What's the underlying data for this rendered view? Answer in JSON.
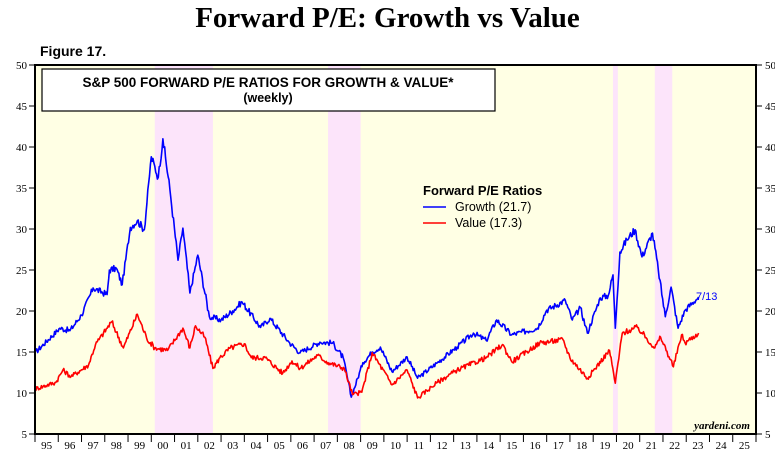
{
  "header": {
    "title": "Forward P/E: Growth vs Value",
    "figure_label": "Figure 17."
  },
  "chart_data": {
    "type": "line",
    "title": "S&P 500 FORWARD P/E RATIOS FOR GROWTH & VALUE*",
    "subtitle": "(weekly)",
    "legend_title": "Forward P/E Ratios",
    "legend_placement": "center",
    "xlim": [
      1995,
      2026
    ],
    "ylim": [
      5,
      50
    ],
    "y_ticks": [
      5,
      10,
      15,
      20,
      25,
      30,
      35,
      40,
      45,
      50
    ],
    "x_tick_labels": [
      "95",
      "96",
      "97",
      "98",
      "99",
      "00",
      "01",
      "02",
      "03",
      "04",
      "05",
      "06",
      "07",
      "08",
      "09",
      "10",
      "11",
      "12",
      "13",
      "14",
      "15",
      "16",
      "17",
      "18",
      "19",
      "20",
      "21",
      "22",
      "23",
      "24",
      "25"
    ],
    "grid": false,
    "background_color": "#ffffe4",
    "recession_shading_color": "#fce4fa",
    "shaded_periods": [
      [
        2000.15,
        2002.65
      ],
      [
        2007.6,
        2009.0
      ],
      [
        2019.85,
        2020.06
      ],
      [
        2021.65,
        2022.4
      ]
    ],
    "end_label": "7/13",
    "source": "yardeni.com",
    "series": [
      {
        "name": "Growth (21.7)",
        "color": "#0000ff",
        "points": [
          [
            1995.0,
            14.9
          ],
          [
            1996.07,
            17.9
          ],
          [
            1996.5,
            17.6
          ],
          [
            1997.0,
            19.5
          ],
          [
            1997.5,
            22.8
          ],
          [
            1998.1,
            22.0
          ],
          [
            1998.2,
            25.0
          ],
          [
            1998.5,
            25.2
          ],
          [
            1998.75,
            23.2
          ],
          [
            1999.1,
            30.2
          ],
          [
            1999.4,
            31.0
          ],
          [
            1999.7,
            29.9
          ],
          [
            2000.0,
            38.8
          ],
          [
            2000.3,
            36.3
          ],
          [
            2000.5,
            41.0
          ],
          [
            2000.8,
            34.8
          ],
          [
            2001.15,
            26.2
          ],
          [
            2001.36,
            30.1
          ],
          [
            2001.66,
            22.2
          ],
          [
            2002.0,
            26.8
          ],
          [
            2002.5,
            19.3
          ],
          [
            2003.0,
            18.9
          ],
          [
            2003.5,
            20.0
          ],
          [
            2003.9,
            21.1
          ],
          [
            2004.7,
            18.0
          ],
          [
            2005.1,
            19.1
          ],
          [
            2005.95,
            16.1
          ],
          [
            2006.4,
            14.9
          ],
          [
            2007.25,
            16.2
          ],
          [
            2007.8,
            16.1
          ],
          [
            2008.25,
            14.3
          ],
          [
            2008.6,
            9.5
          ],
          [
            2009.1,
            13.7
          ],
          [
            2009.5,
            15.0
          ],
          [
            2009.85,
            15.6
          ],
          [
            2010.35,
            12.6
          ],
          [
            2011.0,
            14.4
          ],
          [
            2011.45,
            11.8
          ],
          [
            2012.3,
            13.7
          ],
          [
            2013.15,
            15.6
          ],
          [
            2013.85,
            17.3
          ],
          [
            2014.4,
            16.4
          ],
          [
            2014.85,
            18.9
          ],
          [
            2015.5,
            17.1
          ],
          [
            2016.6,
            17.9
          ],
          [
            2017.0,
            20.1
          ],
          [
            2017.8,
            21.3
          ],
          [
            2018.1,
            18.9
          ],
          [
            2018.45,
            20.4
          ],
          [
            2018.75,
            17.3
          ],
          [
            2019.3,
            21.6
          ],
          [
            2019.65,
            21.9
          ],
          [
            2019.85,
            24.4
          ],
          [
            2019.95,
            17.9
          ],
          [
            2020.15,
            27.2
          ],
          [
            2020.45,
            28.7
          ],
          [
            2020.8,
            29.9
          ],
          [
            2021.1,
            26.6
          ],
          [
            2021.55,
            29.5
          ],
          [
            2021.8,
            25.0
          ],
          [
            2022.1,
            19.3
          ],
          [
            2022.35,
            22.9
          ],
          [
            2022.65,
            17.9
          ],
          [
            2022.95,
            20.1
          ],
          [
            2023.53,
            21.7
          ]
        ]
      },
      {
        "name": "Value (17.3)",
        "color": "#ff0000",
        "points": [
          [
            1995.0,
            10.5
          ],
          [
            1995.9,
            11.3
          ],
          [
            1996.2,
            12.8
          ],
          [
            1996.55,
            12.0
          ],
          [
            1997.3,
            13.4
          ],
          [
            1997.6,
            15.9
          ],
          [
            1998.3,
            18.7
          ],
          [
            1998.8,
            15.5
          ],
          [
            1999.4,
            19.6
          ],
          [
            1999.8,
            16.7
          ],
          [
            2000.15,
            15.5
          ],
          [
            2000.7,
            15.2
          ],
          [
            2001.36,
            17.9
          ],
          [
            2001.66,
            15.5
          ],
          [
            2001.9,
            18.2
          ],
          [
            2002.3,
            16.8
          ],
          [
            2002.65,
            13.0
          ],
          [
            2002.95,
            14.3
          ],
          [
            2003.4,
            15.5
          ],
          [
            2004.0,
            16.0
          ],
          [
            2004.3,
            14.3
          ],
          [
            2004.9,
            14.3
          ],
          [
            2005.65,
            12.4
          ],
          [
            2006.05,
            13.9
          ],
          [
            2006.4,
            13.0
          ],
          [
            2007.15,
            14.6
          ],
          [
            2007.6,
            13.7
          ],
          [
            2008.3,
            13.0
          ],
          [
            2008.65,
            9.8
          ],
          [
            2009.05,
            10.1
          ],
          [
            2009.5,
            14.9
          ],
          [
            2010.35,
            11.0
          ],
          [
            2011.0,
            12.8
          ],
          [
            2011.45,
            9.4
          ],
          [
            2012.3,
            11.3
          ],
          [
            2013.15,
            12.8
          ],
          [
            2014.4,
            14.3
          ],
          [
            2015.1,
            15.9
          ],
          [
            2015.5,
            13.8
          ],
          [
            2016.7,
            16.1
          ],
          [
            2017.7,
            16.5
          ],
          [
            2018.0,
            14.3
          ],
          [
            2018.75,
            11.8
          ],
          [
            2019.7,
            15.2
          ],
          [
            2019.95,
            11.2
          ],
          [
            2020.25,
            17.3
          ],
          [
            2020.9,
            18.0
          ],
          [
            2021.65,
            15.5
          ],
          [
            2021.9,
            16.8
          ],
          [
            2022.45,
            13.2
          ],
          [
            2022.8,
            17.1
          ],
          [
            2022.95,
            16.1
          ],
          [
            2023.53,
            17.3
          ]
        ]
      }
    ]
  }
}
